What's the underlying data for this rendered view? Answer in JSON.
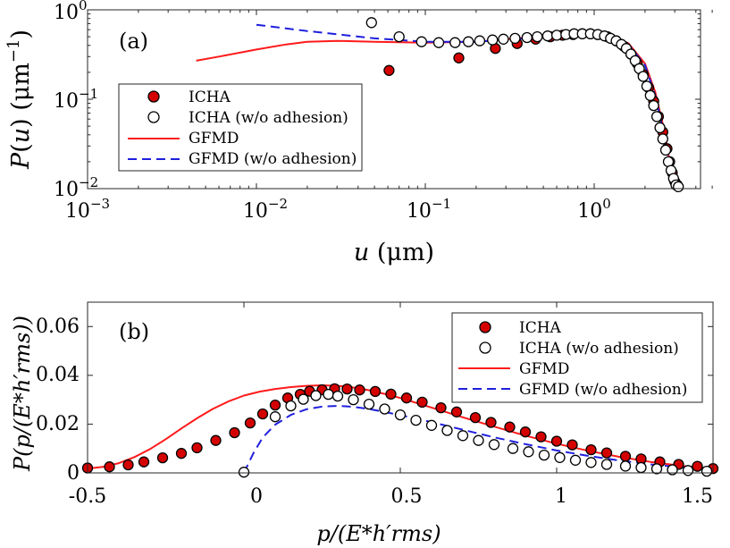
{
  "chart_data": [
    {
      "type": "scatter",
      "panel_label": "(a)",
      "x_scale": "log",
      "y_scale": "log",
      "xlim": [
        0.001,
        5
      ],
      "ylim": [
        0.01,
        1
      ],
      "x_ticks": [
        0.001,
        0.01,
        0.1,
        1
      ],
      "x_tick_labels": [
        {
          "base": "10",
          "exp": "−3"
        },
        {
          "base": "10",
          "exp": "−2"
        },
        {
          "base": "10",
          "exp": "−1"
        },
        {
          "base": "10",
          "exp": "0"
        }
      ],
      "y_ticks": [
        0.01,
        0.1,
        1
      ],
      "y_tick_labels": [
        {
          "base": "10",
          "exp": "−2"
        },
        {
          "base": "10",
          "exp": "−1"
        },
        {
          "base": "10",
          "exp": "0"
        }
      ],
      "xlabel": {
        "var": "u",
        "units": "(μm)"
      },
      "ylabel": {
        "func": "P",
        "var": "u",
        "units_base": "(μm",
        "units_exp": "−1",
        "units_close": ")"
      },
      "legend_position": "middle-left",
      "series": [
        {
          "name": "ICHA",
          "marker": "filled-circle",
          "color": "#d40000",
          "x": [
            0.061,
            0.158,
            0.26,
            0.35,
            0.45,
            0.55,
            0.65,
            0.75,
            0.85,
            0.95,
            1.05,
            1.2,
            1.35,
            1.5,
            1.65,
            1.8,
            1.95,
            2.1,
            2.25,
            2.4,
            2.55,
            2.7,
            2.8,
            2.9,
            3.0,
            3.1
          ],
          "y": [
            0.21,
            0.29,
            0.37,
            0.42,
            0.47,
            0.5,
            0.52,
            0.53,
            0.54,
            0.54,
            0.53,
            0.5,
            0.45,
            0.39,
            0.32,
            0.25,
            0.19,
            0.135,
            0.095,
            0.064,
            0.043,
            0.028,
            0.02,
            0.015,
            0.012,
            0.011
          ]
        },
        {
          "name": "ICHA (w/o adhesion)",
          "marker": "open-circle",
          "color": "#000000",
          "x": [
            0.048,
            0.07,
            0.095,
            0.12,
            0.15,
            0.18,
            0.21,
            0.25,
            0.29,
            0.34,
            0.4,
            0.46,
            0.53,
            0.6,
            0.68,
            0.76,
            0.85,
            0.95,
            1.05,
            1.15,
            1.25,
            1.35,
            1.45,
            1.55,
            1.65,
            1.75,
            1.85,
            1.95,
            2.05,
            2.15,
            2.25,
            2.35,
            2.45,
            2.55,
            2.65,
            2.75,
            2.85,
            2.95,
            3.05,
            3.15
          ],
          "y": [
            0.72,
            0.5,
            0.44,
            0.43,
            0.43,
            0.44,
            0.45,
            0.46,
            0.47,
            0.48,
            0.49,
            0.5,
            0.51,
            0.52,
            0.53,
            0.54,
            0.54,
            0.54,
            0.53,
            0.51,
            0.48,
            0.45,
            0.41,
            0.37,
            0.32,
            0.27,
            0.22,
            0.18,
            0.14,
            0.11,
            0.085,
            0.064,
            0.048,
            0.036,
            0.027,
            0.02,
            0.016,
            0.013,
            0.011,
            0.0105
          ]
        },
        {
          "name": "GFMD",
          "line": "solid",
          "color": "#ff1a1a",
          "x": [
            0.0044,
            0.006,
            0.01,
            0.015,
            0.02,
            0.03,
            0.05,
            0.1,
            0.2,
            0.4,
            0.6,
            0.8,
            1.0,
            1.3,
            1.6,
            2.0,
            2.3,
            2.6,
            2.8,
            3.0
          ],
          "y": [
            0.27,
            0.3,
            0.36,
            0.41,
            0.44,
            0.45,
            0.44,
            0.43,
            0.44,
            0.49,
            0.52,
            0.53,
            0.53,
            0.5,
            0.42,
            0.25,
            0.12,
            0.045,
            0.02,
            0.0105
          ]
        },
        {
          "name": "GFMD (w/o adhesion)",
          "line": "dashed",
          "color": "#1f1fdd",
          "x": [
            0.01,
            0.02,
            0.05,
            0.1,
            0.2,
            0.4,
            0.6,
            0.8,
            1.0,
            1.3,
            1.6,
            2.0,
            2.3,
            2.6,
            2.8,
            3.0
          ],
          "y": [
            0.68,
            0.58,
            0.48,
            0.44,
            0.44,
            0.48,
            0.51,
            0.53,
            0.53,
            0.5,
            0.41,
            0.24,
            0.11,
            0.04,
            0.018,
            0.0105
          ]
        }
      ]
    },
    {
      "type": "scatter",
      "panel_label": "(b)",
      "x_scale": "linear",
      "y_scale": "linear",
      "xlim": [
        -0.5,
        1.5
      ],
      "ylim": [
        0,
        0.07
      ],
      "x_ticks": [
        -0.5,
        0,
        0.5,
        1,
        1.5
      ],
      "x_tick_labels": [
        "-0.5",
        "0",
        "0.5",
        "1",
        "1.5"
      ],
      "y_ticks": [
        0,
        0.02,
        0.04,
        0.06
      ],
      "y_tick_labels": [
        "0",
        "0.02",
        "0.04",
        "0.06"
      ],
      "xlabel": "p/(E*h′rms)",
      "ylabel": "P(p/(E*h′rms))",
      "legend_position": "top-right",
      "series": [
        {
          "name": "ICHA",
          "marker": "filled-circle",
          "color": "#d40000",
          "x": [
            -0.5,
            -0.43,
            -0.37,
            -0.32,
            -0.26,
            -0.2,
            -0.15,
            -0.09,
            -0.03,
            0.02,
            0.06,
            0.1,
            0.14,
            0.18,
            0.21,
            0.25,
            0.29,
            0.33,
            0.37,
            0.42,
            0.47,
            0.52,
            0.57,
            0.63,
            0.68,
            0.74,
            0.79,
            0.85,
            0.9,
            0.95,
            1.0,
            1.05,
            1.11,
            1.16,
            1.22,
            1.27,
            1.33,
            1.39,
            1.45,
            1.5
          ],
          "y": [
            0.002,
            0.0025,
            0.0033,
            0.0045,
            0.0062,
            0.008,
            0.0103,
            0.0133,
            0.0165,
            0.0205,
            0.0242,
            0.0278,
            0.0307,
            0.0322,
            0.0335,
            0.0341,
            0.0345,
            0.0344,
            0.034,
            0.0334,
            0.0323,
            0.0307,
            0.029,
            0.0267,
            0.025,
            0.0227,
            0.0207,
            0.0188,
            0.0168,
            0.0148,
            0.013,
            0.0115,
            0.0095,
            0.0082,
            0.0068,
            0.0057,
            0.0045,
            0.0035,
            0.0027,
            0.0018
          ]
        },
        {
          "name": "ICHA (w/o adhesion)",
          "marker": "open-circle",
          "color": "#000000",
          "x": [
            0.0,
            0.1,
            0.15,
            0.19,
            0.23,
            0.27,
            0.3,
            0.35,
            0.4,
            0.45,
            0.5,
            0.55,
            0.6,
            0.65,
            0.7,
            0.75,
            0.8,
            0.86,
            0.91,
            0.96,
            1.01,
            1.06,
            1.11,
            1.16,
            1.22,
            1.27,
            1.32,
            1.37,
            1.42,
            1.48
          ],
          "y": [
            0.0003,
            0.023,
            0.0275,
            0.0302,
            0.0317,
            0.0322,
            0.0315,
            0.03,
            0.0282,
            0.0262,
            0.0238,
            0.0216,
            0.0195,
            0.0174,
            0.0153,
            0.0133,
            0.0116,
            0.01,
            0.0087,
            0.0073,
            0.0063,
            0.0052,
            0.0043,
            0.0035,
            0.0028,
            0.0022,
            0.0017,
            0.0013,
            0.001,
            0.0007
          ]
        },
        {
          "name": "GFMD",
          "line": "solid",
          "color": "#ff1a1a",
          "x": [
            -0.5,
            -0.45,
            -0.4,
            -0.35,
            -0.3,
            -0.25,
            -0.2,
            -0.15,
            -0.1,
            -0.05,
            0.0,
            0.05,
            0.1,
            0.15,
            0.2,
            0.25,
            0.3,
            0.35,
            0.4,
            0.45,
            0.5,
            0.6,
            0.7,
            0.8,
            0.9,
            1.0,
            1.1,
            1.2,
            1.3,
            1.4,
            1.5
          ],
          "y": [
            0.0018,
            0.0025,
            0.004,
            0.0065,
            0.0098,
            0.0138,
            0.0182,
            0.0224,
            0.0262,
            0.0293,
            0.0317,
            0.0333,
            0.0344,
            0.0352,
            0.0357,
            0.0359,
            0.0357,
            0.035,
            0.0339,
            0.0324,
            0.0307,
            0.0268,
            0.0228,
            0.019,
            0.0153,
            0.012,
            0.0091,
            0.0066,
            0.0045,
            0.0029,
            0.0017
          ]
        },
        {
          "name": "GFMD (w/o adhesion)",
          "line": "dashed",
          "color": "#1f1fdd",
          "x": [
            0.0,
            0.03,
            0.06,
            0.1,
            0.15,
            0.2,
            0.25,
            0.3,
            0.35,
            0.4,
            0.5,
            0.6,
            0.7,
            0.8,
            0.9,
            1.0,
            1.1,
            1.2,
            1.3,
            1.4,
            1.5
          ],
          "y": [
            0.0,
            0.008,
            0.0145,
            0.0198,
            0.0238,
            0.0261,
            0.0272,
            0.0275,
            0.0271,
            0.0262,
            0.0237,
            0.0208,
            0.0177,
            0.0146,
            0.0118,
            0.0092,
            0.007,
            0.0051,
            0.0035,
            0.0023,
            0.0014
          ]
        }
      ]
    }
  ]
}
